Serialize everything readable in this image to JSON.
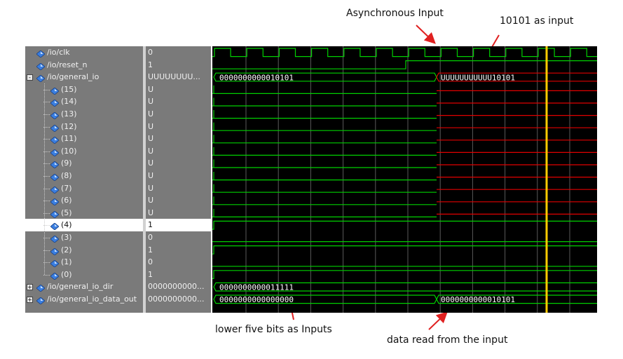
{
  "annotations": {
    "async_input": "Asynchronous Input",
    "input_10101": "10101 as input",
    "lower_bits": "lower five bits as Inputs",
    "data_read": "data read from the input"
  },
  "signals": [
    {
      "name": "/io/clk",
      "value": "0",
      "level": 0,
      "expand": ""
    },
    {
      "name": "/io/reset_n",
      "value": "1",
      "level": 0,
      "expand": ""
    },
    {
      "name": "/io/general_io",
      "value": "UUUUUUUU...",
      "level": 0,
      "expand": "-"
    },
    {
      "name": "(15)",
      "value": "U",
      "level": 1,
      "expand": ""
    },
    {
      "name": "(14)",
      "value": "U",
      "level": 1,
      "expand": ""
    },
    {
      "name": "(13)",
      "value": "U",
      "level": 1,
      "expand": ""
    },
    {
      "name": "(12)",
      "value": "U",
      "level": 1,
      "expand": ""
    },
    {
      "name": "(11)",
      "value": "U",
      "level": 1,
      "expand": ""
    },
    {
      "name": "(10)",
      "value": "U",
      "level": 1,
      "expand": ""
    },
    {
      "name": "(9)",
      "value": "U",
      "level": 1,
      "expand": ""
    },
    {
      "name": "(8)",
      "value": "U",
      "level": 1,
      "expand": ""
    },
    {
      "name": "(7)",
      "value": "U",
      "level": 1,
      "expand": ""
    },
    {
      "name": "(6)",
      "value": "U",
      "level": 1,
      "expand": ""
    },
    {
      "name": "(5)",
      "value": "U",
      "level": 1,
      "expand": ""
    },
    {
      "name": "(4)",
      "value": "1",
      "level": 1,
      "expand": "",
      "selected": true
    },
    {
      "name": "(3)",
      "value": "0",
      "level": 1,
      "expand": ""
    },
    {
      "name": "(2)",
      "value": "1",
      "level": 1,
      "expand": ""
    },
    {
      "name": "(1)",
      "value": "0",
      "level": 1,
      "expand": ""
    },
    {
      "name": "(0)",
      "value": "1",
      "level": 1,
      "expand": ""
    },
    {
      "name": "/io/general_io_dir",
      "value": "0000000000...",
      "level": 0,
      "expand": "+"
    },
    {
      "name": "/io/general_io_data_out",
      "value": "0000000000...",
      "level": 0,
      "expand": "+"
    }
  ],
  "bus_labels": {
    "general_io_before": "0000000000010101",
    "general_io_after": "UUUUUUUUUUU10101",
    "dir": "0000000000011111",
    "data_out_before": "0000000000000000",
    "data_out_after": "0000000000010101"
  },
  "colors": {
    "wave_green": "#00d000",
    "wave_red": "#e00000",
    "cursor_yellow": "#ffcc00",
    "grid": "#5a5a5a",
    "signal_icon": "#3a7ee0",
    "arrow_red": "#e02020"
  }
}
